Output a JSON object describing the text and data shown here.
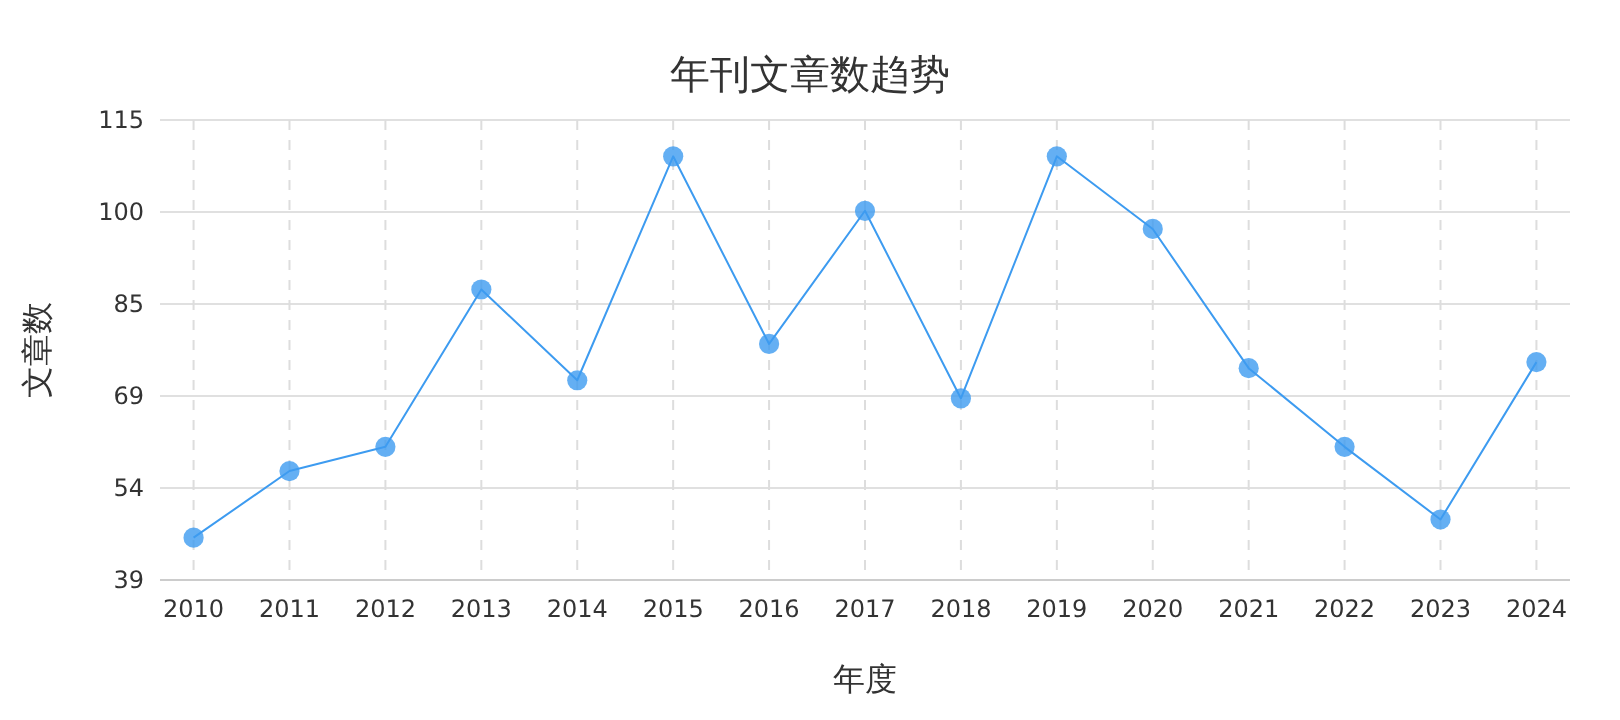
{
  "chart_data": {
    "type": "line",
    "title": "年刊文章数趋势",
    "xlabel": "年度",
    "ylabel": "文章数",
    "categories": [
      "2010",
      "2011",
      "2012",
      "2013",
      "2014",
      "2015",
      "2016",
      "2017",
      "2018",
      "2019",
      "2020",
      "2021",
      "2022",
      "2023",
      "2024"
    ],
    "series": [
      {
        "color": "#3d9bf0",
        "values": [
          46,
          57,
          61,
          87,
          72,
          109,
          78,
          100,
          69,
          109,
          97,
          74,
          61,
          49,
          75
        ]
      }
    ],
    "ylim": [
      39,
      115
    ],
    "yticks": [
      39,
      {
        "value": 54.2,
        "label": "54"
      },
      {
        "value": 69.4,
        "label": "69"
      },
      {
        "value": 84.6,
        "label": "85"
      },
      {
        "value": 99.8,
        "label": "100"
      },
      115
    ],
    "grid": true,
    "marker": "circle",
    "line_style": "solid"
  }
}
